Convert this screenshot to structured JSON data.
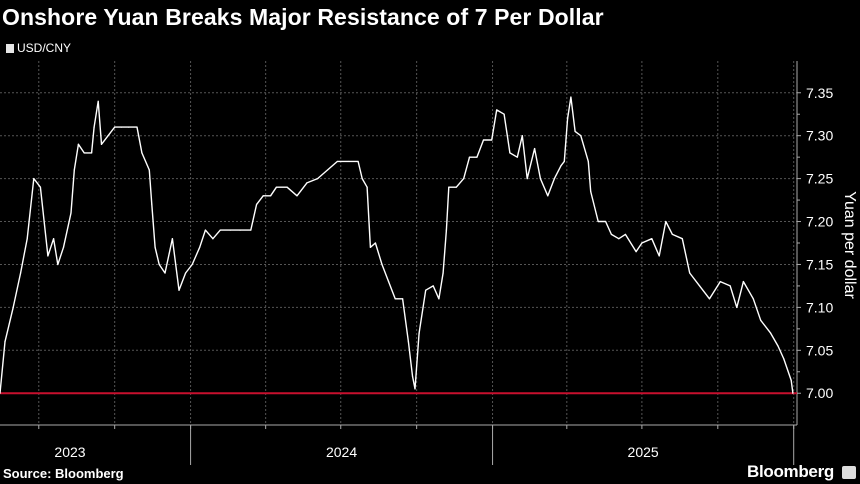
{
  "title": "Onshore Yuan Breaks Major Resistance of 7 Per Dollar",
  "source": "Source: Bloomberg",
  "brand": "Bloomberg",
  "colors": {
    "background": "#000000",
    "series": "#ffffff",
    "reference_line": "#c8102e",
    "grid": "#444444"
  },
  "chart_data": {
    "type": "line",
    "title": "Onshore Yuan Breaks Major Resistance of 7 Per Dollar",
    "legend": [
      {
        "name": "USD/CNY",
        "color": "#ffffff"
      }
    ],
    "legend_position": "top-left",
    "ylabel": "Yuan per dollar",
    "y_axis_side": "right",
    "ylim": [
      6.963,
      7.387
    ],
    "yticks": [
      "7.00",
      "7.05",
      "7.10",
      "7.15",
      "7.20",
      "7.25",
      "7.30",
      "7.35"
    ],
    "xlim": [
      "2023-05-15",
      "2026-01-05"
    ],
    "xtick_labels": [
      "2023",
      "2024",
      "2025"
    ],
    "grid": true,
    "reference_line": {
      "value": 7.0,
      "color": "#c8102e"
    },
    "series": [
      {
        "name": "USD/CNY",
        "x": [
          "2023-05-15",
          "2023-05-21",
          "2023-05-31",
          "2023-06-09",
          "2023-06-17",
          "2023-06-25",
          "2023-07-03",
          "2023-07-12",
          "2023-07-19",
          "2023-07-24",
          "2023-07-31",
          "2023-08-09",
          "2023-08-13",
          "2023-08-18",
          "2023-08-25",
          "2023-09-03",
          "2023-09-06",
          "2023-09-11",
          "2023-09-15",
          "2023-09-23",
          "2023-10-01",
          "2023-10-09",
          "2023-10-18",
          "2023-10-28",
          "2023-11-03",
          "2023-11-12",
          "2023-11-15",
          "2023-11-19",
          "2023-11-24",
          "2023-12-01",
          "2023-12-10",
          "2023-12-18",
          "2023-12-26",
          "2024-01-03",
          "2024-01-12",
          "2024-01-19",
          "2024-01-28",
          "2024-02-06",
          "2024-02-18",
          "2024-03-01",
          "2024-03-14",
          "2024-03-21",
          "2024-03-29",
          "2024-04-07",
          "2024-04-14",
          "2024-04-27",
          "2024-05-09",
          "2024-05-21",
          "2024-06-03",
          "2024-06-15",
          "2024-06-27",
          "2024-07-10",
          "2024-07-22",
          "2024-07-27",
          "2024-08-02",
          "2024-08-06",
          "2024-08-12",
          "2024-08-20",
          "2024-08-28",
          "2024-09-05",
          "2024-09-14",
          "2024-09-21",
          "2024-09-26",
          "2024-09-29",
          "2024-10-04",
          "2024-10-12",
          "2024-10-21",
          "2024-10-28",
          "2024-11-02",
          "2024-11-06",
          "2024-11-09",
          "2024-11-18",
          "2024-11-27",
          "2024-12-04",
          "2024-12-13",
          "2024-12-21",
          "2024-12-31",
          "2025-01-06",
          "2025-01-15",
          "2025-01-22",
          "2025-01-31",
          "2025-02-06",
          "2025-02-12",
          "2025-02-21",
          "2025-02-28",
          "2025-03-09",
          "2025-03-17",
          "2025-03-25",
          "2025-03-29",
          "2025-04-02",
          "2025-04-06",
          "2025-04-11",
          "2025-04-18",
          "2025-04-27",
          "2025-04-30",
          "2025-05-09",
          "2025-05-18",
          "2025-05-25",
          "2025-06-03",
          "2025-06-11",
          "2025-06-24",
          "2025-07-01",
          "2025-07-13",
          "2025-07-22",
          "2025-07-30",
          "2025-08-07",
          "2025-08-19",
          "2025-08-28",
          "2025-09-09",
          "2025-09-21",
          "2025-10-04",
          "2025-10-16",
          "2025-10-24",
          "2025-11-01",
          "2025-11-13",
          "2025-11-22",
          "2025-12-04",
          "2025-12-13",
          "2025-12-20",
          "2025-12-29",
          "2025-12-31"
        ],
        "values": [
          7.0,
          7.06,
          7.1,
          7.14,
          7.18,
          7.25,
          7.24,
          7.16,
          7.18,
          7.15,
          7.17,
          7.21,
          7.26,
          7.29,
          7.28,
          7.28,
          7.31,
          7.34,
          7.29,
          7.3,
          7.31,
          7.31,
          7.31,
          7.31,
          7.28,
          7.26,
          7.22,
          7.17,
          7.15,
          7.14,
          7.18,
          7.12,
          7.14,
          7.15,
          7.17,
          7.19,
          7.18,
          7.19,
          7.19,
          7.19,
          7.19,
          7.22,
          7.23,
          7.23,
          7.24,
          7.24,
          7.23,
          7.245,
          7.25,
          7.26,
          7.27,
          7.27,
          7.27,
          7.25,
          7.24,
          7.17,
          7.175,
          7.15,
          7.13,
          7.11,
          7.11,
          7.06,
          7.02,
          7.005,
          7.07,
          7.12,
          7.125,
          7.11,
          7.14,
          7.19,
          7.24,
          7.24,
          7.25,
          7.275,
          7.275,
          7.295,
          7.295,
          7.33,
          7.325,
          7.28,
          7.275,
          7.3,
          7.25,
          7.285,
          7.25,
          7.23,
          7.25,
          7.265,
          7.27,
          7.32,
          7.345,
          7.305,
          7.3,
          7.27,
          7.235,
          7.2,
          7.2,
          7.185,
          7.18,
          7.185,
          7.165,
          7.175,
          7.18,
          7.16,
          7.2,
          7.185,
          7.18,
          7.14,
          7.125,
          7.11,
          7.13,
          7.125,
          7.1,
          7.13,
          7.11,
          7.085,
          7.07,
          7.055,
          7.04,
          7.015,
          7.0
        ]
      }
    ]
  }
}
